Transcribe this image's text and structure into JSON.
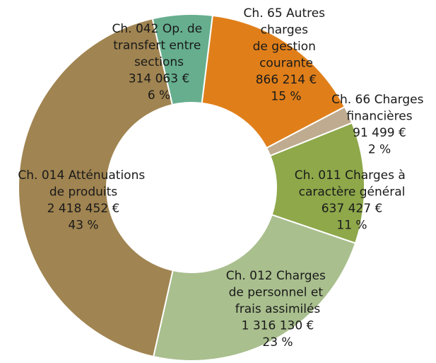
{
  "chart_data": {
    "type": "donut",
    "categories": [
      "Ch. 65 Autres charges de gestion courante",
      "Ch. 66 Charges financières",
      "Ch. 011 Charges à caractère général",
      "Ch. 012 Charges de personnel et frais assimilés",
      "Ch. 014 Atténuations de produits",
      "Ch. 042 Op. de transfert entre sections"
    ],
    "values": [
      866214,
      91499,
      637427,
      1316130,
      2418452,
      314063
    ],
    "value_labels": [
      "866 214 €",
      "91 499 €",
      "637 427 €",
      "1 316 130 €",
      "2 418 452 €",
      "314 063 €"
    ],
    "percents": [
      15,
      2,
      11,
      23,
      43,
      6
    ],
    "percent_labels": [
      "15 %",
      "2 %",
      "11 %",
      "23 %",
      "43 %",
      "6 %"
    ],
    "colors": [
      "#e07f1a",
      "#bfab8f",
      "#8ea84a",
      "#a9bf8e",
      "#a08451",
      "#66ae8e"
    ]
  }
}
